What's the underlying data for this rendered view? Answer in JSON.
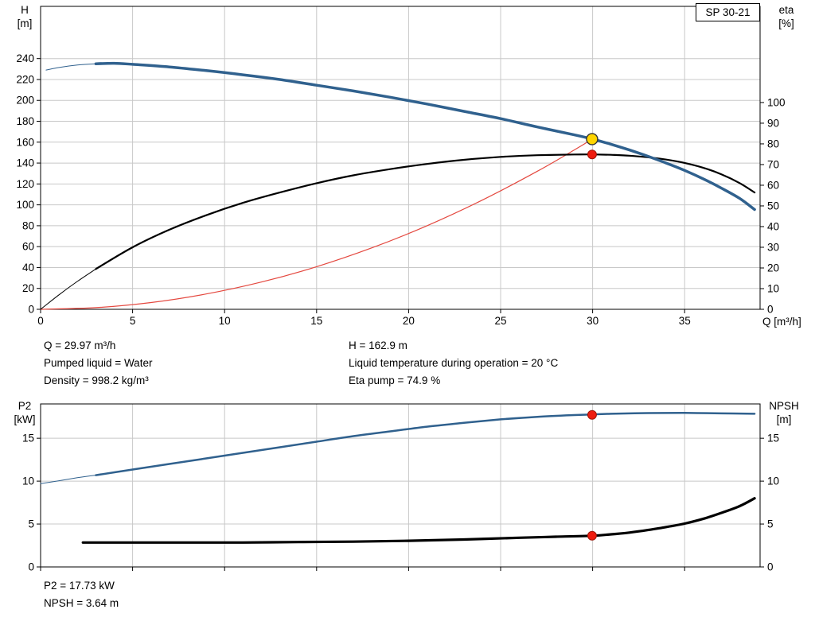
{
  "model_label": "SP 30-21",
  "colors": {
    "curve_blue": "#30618e",
    "curve_black": "#000000",
    "curve_red": "#e4483f",
    "marker_red": "#ee1c0f",
    "marker_yellow": "#ffd500",
    "grid": "#c8c8c8",
    "axis": "#000000"
  },
  "axes": {
    "h_title": "H",
    "h_unit": "[m]",
    "eta_title": "eta",
    "eta_unit": "[%]",
    "q_label": "Q [m³/h]",
    "p2_title": "P2",
    "p2_unit": "[kW]",
    "npsh_title": "NPSH",
    "npsh_unit": "[m]"
  },
  "top_info": {
    "left": [
      "Q = 29.97 m³/h",
      "Pumped liquid = Water",
      "Density = 998.2 kg/m³"
    ],
    "right": [
      "H = 162.9 m",
      "Liquid temperature during operation = 20 °C",
      "Eta pump = 74.9 %"
    ]
  },
  "bottom_info": [
    "P2 = 17.73 kW",
    "NPSH = 3.64 m"
  ],
  "chart_data": [
    {
      "id": "hq-eta",
      "type": "line",
      "title": "SP 30-21 pump curve: head and efficiency vs flow",
      "x_axis": {
        "label": "Q [m³/h]",
        "min": 0,
        "max": 39.1,
        "ticks": [
          0,
          5,
          10,
          15,
          20,
          25,
          30,
          35
        ],
        "show_tick_labels": true
      },
      "y_left": {
        "label": "H [m]",
        "min": 0,
        "max": 290,
        "ticks": [
          0,
          20,
          40,
          60,
          80,
          100,
          120,
          140,
          160,
          180,
          200,
          220,
          240
        ]
      },
      "y_right": {
        "label": "eta [%]",
        "min": 0,
        "max": 146.5,
        "ticks": [
          0,
          10,
          20,
          30,
          40,
          50,
          60,
          70,
          80,
          90,
          100
        ]
      },
      "grid": true,
      "series": [
        {
          "name": "system-curve",
          "axis": "left",
          "color": "curve_red",
          "width": 1.2,
          "points": [
            [
              0,
              0
            ],
            [
              3,
              1.6
            ],
            [
              6,
              6.5
            ],
            [
              9,
              14.7
            ],
            [
              12,
              26.1
            ],
            [
              15,
              40.8
            ],
            [
              18,
              58.8
            ],
            [
              21,
              80.0
            ],
            [
              24,
              104.5
            ],
            [
              27,
              132.2
            ],
            [
              29,
              152.5
            ],
            [
              29.97,
              162.9
            ]
          ]
        },
        {
          "name": "eta-lead",
          "axis": "right",
          "color": "curve_black",
          "width": 1,
          "points": [
            [
              0,
              0
            ],
            [
              1,
              7
            ],
            [
              2,
              13.5
            ],
            [
              3,
              19.5
            ]
          ]
        },
        {
          "name": "eta",
          "axis": "right",
          "color": "curve_black",
          "width": 2.2,
          "points": [
            [
              3,
              19.5
            ],
            [
              5,
              30
            ],
            [
              7,
              38.5
            ],
            [
              9,
              45.5
            ],
            [
              11,
              51.5
            ],
            [
              13,
              56.5
            ],
            [
              15,
              61
            ],
            [
              17,
              64.8
            ],
            [
              19,
              67.8
            ],
            [
              21,
              70.3
            ],
            [
              23,
              72.3
            ],
            [
              25,
              73.7
            ],
            [
              27,
              74.5
            ],
            [
              29,
              74.85
            ],
            [
              30,
              74.9
            ],
            [
              31,
              74.7
            ],
            [
              32,
              74.3
            ],
            [
              33,
              73.5
            ],
            [
              34,
              72.4
            ],
            [
              35,
              70.8
            ],
            [
              36,
              68.5
            ],
            [
              37,
              65.3
            ],
            [
              38,
              61
            ],
            [
              38.8,
              56.5
            ]
          ]
        },
        {
          "name": "head-lead",
          "axis": "left",
          "color": "curve_blue",
          "width": 1,
          "points": [
            [
              0.3,
              229
            ],
            [
              1,
              231.5
            ],
            [
              2,
              233.8
            ],
            [
              3,
              235
            ]
          ]
        },
        {
          "name": "head",
          "axis": "left",
          "color": "curve_blue",
          "width": 3.5,
          "points": [
            [
              3,
              235
            ],
            [
              4,
              235.5
            ],
            [
              5,
              234.5
            ],
            [
              7,
              232
            ],
            [
              9,
              228.5
            ],
            [
              11,
              224.5
            ],
            [
              13,
              220
            ],
            [
              15,
              214.5
            ],
            [
              17,
              209
            ],
            [
              19,
              203
            ],
            [
              21,
              196.5
            ],
            [
              23,
              189.5
            ],
            [
              25,
              182.5
            ],
            [
              27,
              174.5
            ],
            [
              29,
              167
            ],
            [
              30,
              162.9
            ],
            [
              31,
              158
            ],
            [
              32,
              152.5
            ],
            [
              33,
              146.5
            ],
            [
              34,
              140
            ],
            [
              35,
              133
            ],
            [
              36,
              125
            ],
            [
              37,
              116
            ],
            [
              38,
              106
            ],
            [
              38.8,
              95.5
            ]
          ]
        }
      ],
      "markers": [
        {
          "name": "duty-point-head-marker",
          "q": 29.97,
          "value": 162.9,
          "axis": "left",
          "style": "yellow",
          "r": 7
        },
        {
          "name": "duty-point-eta-marker",
          "q": 29.97,
          "value": 74.9,
          "axis": "right",
          "style": "red",
          "r": 5.5
        }
      ]
    },
    {
      "id": "p2-npsh",
      "type": "line",
      "title": "Power P2 and NPSH vs flow",
      "x_axis": {
        "label": "",
        "min": 0,
        "max": 39.1,
        "ticks": [
          0,
          5,
          10,
          15,
          20,
          25,
          30,
          35
        ],
        "show_tick_labels": false
      },
      "y_left": {
        "label": "P2 [kW]",
        "min": 0,
        "max": 19,
        "ticks": [
          0,
          5,
          10,
          15
        ]
      },
      "y_right": {
        "label": "NPSH [m]",
        "min": 0,
        "max": 19,
        "ticks": [
          0,
          5,
          10,
          15
        ]
      },
      "grid": true,
      "series": [
        {
          "name": "p2-lead",
          "axis": "left",
          "color": "curve_blue",
          "width": 1,
          "points": [
            [
              0,
              9.7
            ],
            [
              1,
              10.05
            ],
            [
              2,
              10.4
            ],
            [
              3,
              10.7
            ]
          ]
        },
        {
          "name": "p2",
          "axis": "left",
          "color": "curve_blue",
          "width": 2.5,
          "points": [
            [
              3,
              10.7
            ],
            [
              5,
              11.35
            ],
            [
              7,
              12
            ],
            [
              9,
              12.65
            ],
            [
              11,
              13.3
            ],
            [
              13,
              13.95
            ],
            [
              15,
              14.6
            ],
            [
              17,
              15.25
            ],
            [
              19,
              15.8
            ],
            [
              21,
              16.35
            ],
            [
              23,
              16.8
            ],
            [
              25,
              17.2
            ],
            [
              27,
              17.5
            ],
            [
              29,
              17.7
            ],
            [
              30,
              17.78
            ],
            [
              31,
              17.85
            ],
            [
              33,
              17.93
            ],
            [
              35,
              17.95
            ],
            [
              37,
              17.9
            ],
            [
              38.8,
              17.85
            ]
          ]
        },
        {
          "name": "npsh",
          "axis": "right",
          "color": "curve_black",
          "width": 3.2,
          "points": [
            [
              2.3,
              2.85
            ],
            [
              5,
              2.85
            ],
            [
              8,
              2.85
            ],
            [
              11,
              2.85
            ],
            [
              14,
              2.9
            ],
            [
              17,
              2.95
            ],
            [
              20,
              3.05
            ],
            [
              23,
              3.2
            ],
            [
              26,
              3.4
            ],
            [
              28,
              3.52
            ],
            [
              30,
              3.64
            ],
            [
              31,
              3.8
            ],
            [
              32,
              4.0
            ],
            [
              33,
              4.3
            ],
            [
              34,
              4.65
            ],
            [
              35,
              5.05
            ],
            [
              36,
              5.6
            ],
            [
              37,
              6.3
            ],
            [
              38,
              7.1
            ],
            [
              38.8,
              8.0
            ]
          ]
        }
      ],
      "markers": [
        {
          "name": "duty-point-p2-marker",
          "q": 29.97,
          "value": 17.73,
          "axis": "left",
          "style": "red",
          "r": 5.5
        },
        {
          "name": "duty-point-npsh-marker",
          "q": 29.97,
          "value": 3.64,
          "axis": "right",
          "style": "red",
          "r": 5.5
        }
      ]
    }
  ]
}
